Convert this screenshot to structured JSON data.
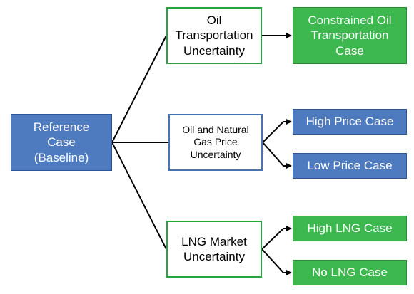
{
  "colors": {
    "blue_fill": "#4e7bbf",
    "green_fill": "#3cb84e",
    "green_outline": "#27a340",
    "blue_outline": "#4a72b0",
    "line": "#000000"
  },
  "nodes": {
    "reference": "Reference\nCase\n(Baseline)",
    "oil_uncertainty": "Oil\nTransportation\nUncertainty",
    "gas_uncertainty": "Oil and Natural\nGas Price\nUncertainty",
    "lng_uncertainty": "LNG Market\nUncertainty",
    "constrained_oil": "Constrained Oil\nTransportation\nCase",
    "high_price": "High Price Case",
    "low_price": "Low Price Case",
    "high_lng": "High LNG Case",
    "no_lng": "No LNG Case"
  }
}
